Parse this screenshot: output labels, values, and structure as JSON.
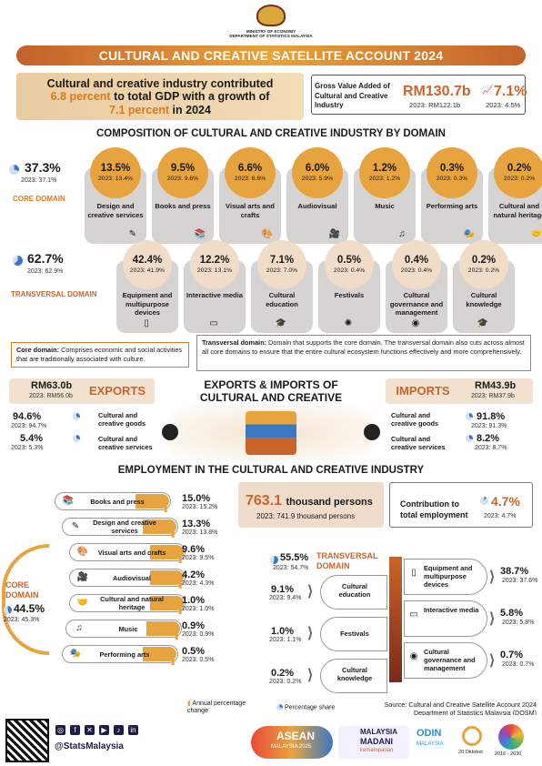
{
  "header": {
    "ministry_line1": "MINISTRY OF ECONOMY",
    "ministry_line2": "DEPARTMENT OF STATISTICS MALAYSIA",
    "title": "CULTURAL AND CREATIVE SATELLITE ACCOUNT 2024"
  },
  "headline": {
    "part1": "Cultural and creative industry contributed",
    "hl1": "6.8 percent",
    "part2": "to total GDP with a growth of",
    "hl2": "7.1 percent",
    "part3": "in 2024"
  },
  "gva": {
    "label": "Gross Value Added of Cultural and Creative Industry",
    "value": "RM130.7b",
    "value_prev": "2023: RM122.1b",
    "growth": "7.1%",
    "growth_prev": "2023: 4.5%"
  },
  "composition": {
    "title": "COMPOSITION OF CULTURAL AND CREATIVE INDUSTRY BY DOMAIN",
    "core": {
      "share": "37.3%",
      "share_prev": "2023: 37.1%",
      "label": "CORE DOMAIN",
      "items": [
        {
          "pct": "13.5%",
          "prev": "2023: 13.4%",
          "name": "Design and creative services",
          "icon": "design-icon"
        },
        {
          "pct": "9.5%",
          "prev": "2023: 9.6%",
          "name": "Books and press",
          "icon": "books-icon"
        },
        {
          "pct": "6.6%",
          "prev": "2023: 6.6%",
          "name": "Visual arts and crafts",
          "icon": "palette-icon"
        },
        {
          "pct": "6.0%",
          "prev": "2023: 5.9%",
          "name": "Audiovisual",
          "icon": "camera-icon"
        },
        {
          "pct": "1.2%",
          "prev": "2023: 1.2%",
          "name": "Music",
          "icon": "music-icon"
        },
        {
          "pct": "0.3%",
          "prev": "2023: 0.3%",
          "name": "Performing arts",
          "icon": "performer-icon"
        },
        {
          "pct": "0.2%",
          "prev": "2023: 0.2%",
          "name": "Cultural and natural heritage",
          "icon": "handshake-icon"
        }
      ]
    },
    "trans": {
      "share": "62.7%",
      "share_prev": "2023: 62.9%",
      "label": "TRANSVERSAL DOMAIN",
      "items": [
        {
          "pct": "42.4%",
          "prev": "2023: 41.9%",
          "name": "Equipment and multipurpose devices",
          "icon": "phone-icon"
        },
        {
          "pct": "12.2%",
          "prev": "2023: 13.1%",
          "name": "Interactive media",
          "icon": "monitor-icon"
        },
        {
          "pct": "7.1%",
          "prev": "2023: 7.0%",
          "name": "Cultural education",
          "icon": "graduation-icon"
        },
        {
          "pct": "0.5%",
          "prev": "2023: 0.4%",
          "name": "Festivals",
          "icon": "festival-icon"
        },
        {
          "pct": "0.4%",
          "prev": "2023: 0.4%",
          "name": "Cultural governance and management",
          "icon": "globe-icon"
        },
        {
          "pct": "0.2%",
          "prev": "2023: 0.2%",
          "name": "Cultural knowledge",
          "icon": "graduation-icon"
        }
      ]
    },
    "core_def_label": "Core domain:",
    "core_def": "Comprises economic and social activities that are traditionally associated with culture.",
    "trans_def_label": "Transversal domain:",
    "trans_def": "Domain that supports the core domain. The transversal domain also cuts across almost all core domains to ensure that the entire cultural ecosystem functions effectively and more comprehensively."
  },
  "trade": {
    "title1": "EXPORTS & IMPORTS OF",
    "title2": "CULTURAL AND CREATIVE PRODUCTS",
    "exports": {
      "label": "EXPORTS",
      "value": "RM63.0b",
      "prev": "2023: RM56.0b",
      "goods_pct": "94.6%",
      "goods_prev": "2023: 94.7%",
      "goods_label": "Cultural and creative goods",
      "services_pct": "5.4%",
      "services_prev": "2023: 5.3%",
      "services_label": "Cultural and creative services"
    },
    "imports": {
      "label": "IMPORTS",
      "value": "RM43.9b",
      "prev": "2023: RM37.9b",
      "goods_pct": "91.8%",
      "goods_prev": "2023: 91.3%",
      "goods_label": "Cultural and creative goods",
      "services_pct": "8.2%",
      "services_prev": "2023: 8.7%",
      "services_label": "Cultural and creative services"
    }
  },
  "employment": {
    "title": "EMPLOYMENT IN THE CULTURAL AND CREATIVE INDUSTRY",
    "persons_value": "763.1",
    "persons_unit": "thousand persons",
    "persons_prev": "2023: 741.9 thousand persons",
    "contrib_label": "Contribution to total employment",
    "contrib_value": "4.7%",
    "contrib_prev": "2023: 4.7%",
    "core_label": "CORE DOMAIN",
    "core_share": "44.5%",
    "core_prev": "2023: 45.3%",
    "core_items": [
      {
        "name": "Books and press",
        "pct": "15.0%",
        "prev": "2023: 15.2%"
      },
      {
        "name": "Design and creative services",
        "pct": "13.3%",
        "prev": "2023: 13.8%"
      },
      {
        "name": "Visual arts and crafts",
        "pct": "9.6%",
        "prev": "2023: 9.5%"
      },
      {
        "name": "Audiovisual",
        "pct": "4.2%",
        "prev": "2023: 4.3%"
      },
      {
        "name": "Cultural and natural heritage",
        "pct": "1.0%",
        "prev": "2023: 1.0%"
      },
      {
        "name": "Music",
        "pct": "0.9%",
        "prev": "2023: 0.9%"
      },
      {
        "name": "Performing arts",
        "pct": "0.5%",
        "prev": "2023: 0.5%"
      }
    ],
    "trans_label": "TRANSVERSAL DOMAIN",
    "trans_share": "55.5%",
    "trans_prev": "2023: 54.7%",
    "trans_left": [
      {
        "name": "Cultural education",
        "pct": "9.1%",
        "prev": "2023: 9.4%"
      },
      {
        "name": "Festivals",
        "pct": "1.0%",
        "prev": "2023: 1.1%"
      },
      {
        "name": "Cultural knowledge",
        "pct": "0.2%",
        "prev": "2023: 0.2%"
      }
    ],
    "trans_right": [
      {
        "name": "Equipment and multipurpose devices",
        "pct": "38.7%",
        "prev": "2023: 37.6%"
      },
      {
        "name": "Interactive media",
        "pct": "5.8%",
        "prev": "2023: 5.8%"
      },
      {
        "name": "Cultural governance and management",
        "pct": "0.7%",
        "prev": "2023: 0.7%"
      }
    ],
    "legend_annual": "Annual percentage change",
    "legend_share": "Percentage share",
    "source1": "Source: Cultural and Creative Satellite Account 2024",
    "source2": "Department of Statistics Malaysia (DOSM)"
  },
  "footer": {
    "handle": "@StatsMalaysia",
    "asean": "ASEAN",
    "asean_sub": "MALAYSIA 2025",
    "madani1": "MALAYSIA",
    "madani2": "MADANI",
    "madani3": "kemampanan",
    "odin": "ODIN",
    "odin_sub": "MALAYSIA",
    "date": "20 Oktober",
    "sdg_years": "2016 - 2030"
  },
  "colors": {
    "accent": "#c9642a",
    "gold": "#e7a33e",
    "blue": "#3b78c4",
    "footer": "#1d1d4a"
  }
}
